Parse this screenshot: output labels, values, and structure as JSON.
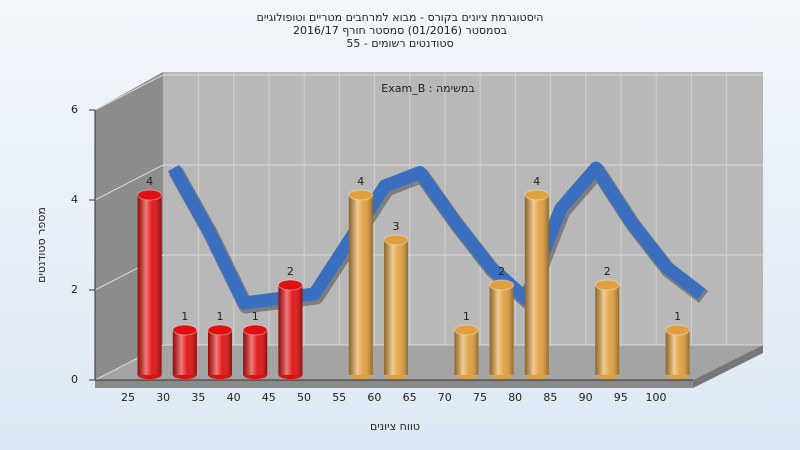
{
  "chart_data": {
    "type": "bar",
    "title": "היסטוגרמת ציונים בקורס - מבוא למרחבים מטריים וטופולוגיים",
    "subtitle": "בסמסטר  (01/2016)  סמסטר חורף 2016/17",
    "subtitle2": "סטודנטים רשומים - 55",
    "annotation": "Exam_B : במשימה",
    "x_label": "טווח ציונים",
    "y_label": "מספר סטודנטים",
    "categories": [
      "25",
      "30",
      "35",
      "40",
      "45",
      "50",
      "55",
      "60",
      "65",
      "70",
      "75",
      "80",
      "85",
      "90",
      "95",
      "100"
    ],
    "values": [
      4,
      1,
      1,
      1,
      2,
      0,
      4,
      3,
      0,
      1,
      2,
      4,
      0,
      2,
      0,
      1
    ],
    "colors": [
      "#e01010",
      "#e01010",
      "#e01010",
      "#e01010",
      "#e01010",
      "#e01010",
      "#e0a040",
      "#e0a040",
      "#e0a040",
      "#e0a040",
      "#e0a040",
      "#e0a040",
      "#e0a040",
      "#e0a040",
      "#e0a040",
      "#e0a040"
    ],
    "trend": {
      "color": "#3a6fc0",
      "values": [
        4.4,
        3.0,
        1.4,
        1.5,
        1.6,
        2.8,
        4.0,
        4.3,
        3.2,
        2.2,
        1.5,
        3.5,
        4.4,
        3.2,
        2.2,
        1.6
      ]
    },
    "ylim": [
      0,
      6
    ],
    "yticks": [
      0,
      2,
      4,
      6
    ],
    "grid": true
  }
}
